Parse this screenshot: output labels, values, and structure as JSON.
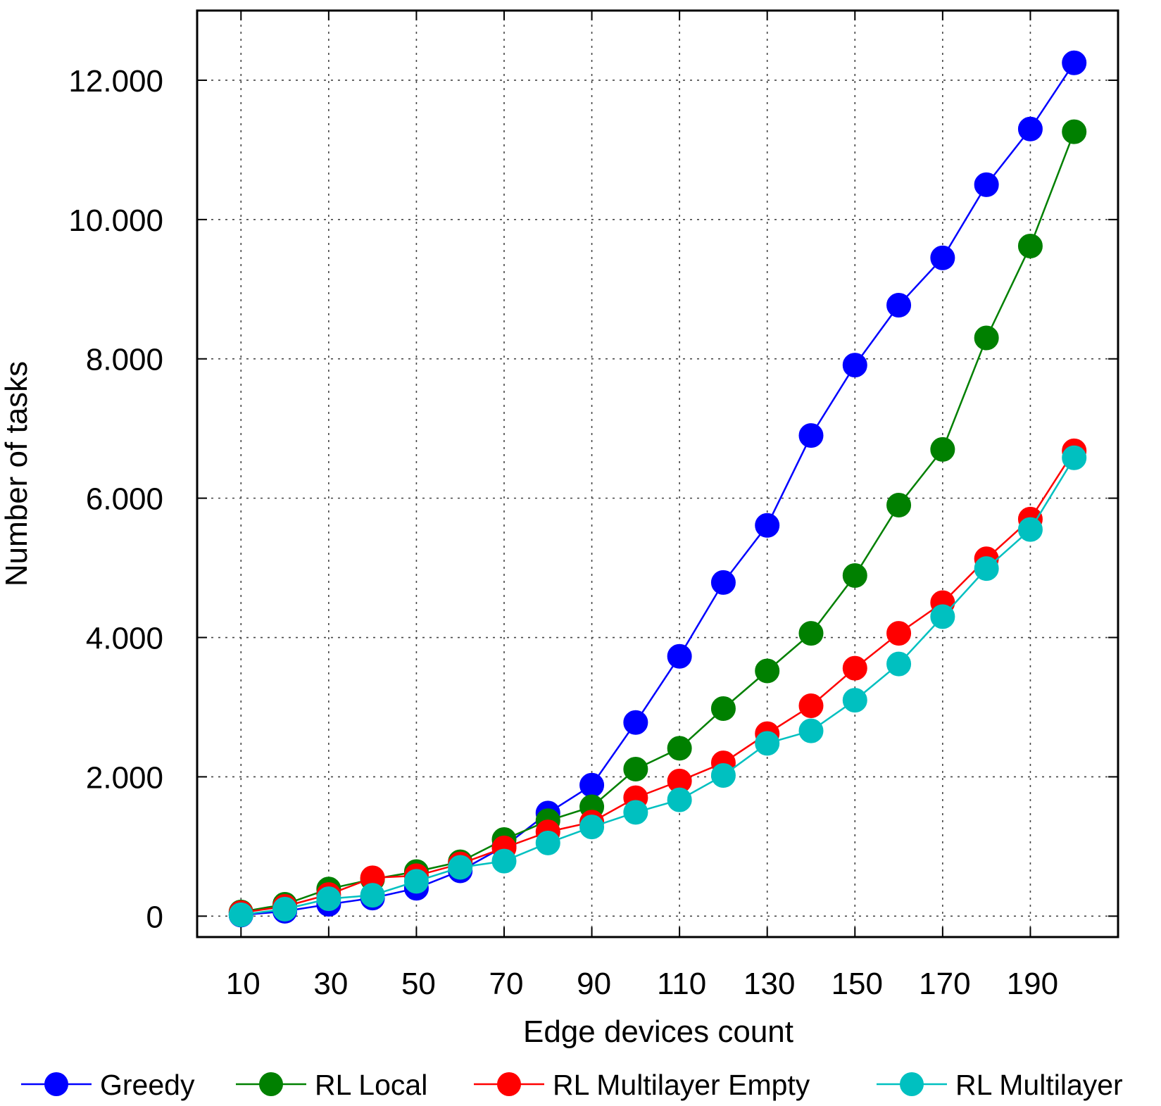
{
  "chart_data": {
    "type": "line",
    "title": "",
    "xlabel": "Edge devices count",
    "ylabel": "Number of tasks",
    "xlim": [
      0,
      210
    ],
    "ylim": [
      -300,
      13000
    ],
    "x_ticks": [
      10,
      30,
      50,
      70,
      90,
      110,
      130,
      150,
      170,
      190
    ],
    "x_tick_labels": [
      "10",
      "30",
      "50",
      "70",
      "90",
      "110",
      "130",
      "150",
      "170",
      "190"
    ],
    "y_ticks": [
      0,
      2000,
      4000,
      6000,
      8000,
      10000,
      12000
    ],
    "y_tick_labels": [
      "0",
      "2.000",
      "4.000",
      "6.000",
      "8.000",
      "10.000",
      "12.000"
    ],
    "grid": true,
    "legend_position": "bottom",
    "x": [
      10,
      20,
      30,
      40,
      50,
      60,
      70,
      80,
      90,
      100,
      110,
      120,
      130,
      140,
      150,
      160,
      170,
      180,
      190,
      200
    ],
    "series": [
      {
        "name": "Greedy",
        "color": "#0000ff",
        "values": [
          15,
          70,
          170,
          260,
          400,
          650,
          1000,
          1480,
          1880,
          2780,
          3730,
          4790,
          5610,
          6900,
          7910,
          8770,
          9450,
          10500,
          11300,
          12250
        ]
      },
      {
        "name": "RL Local",
        "color": "#008000",
        "values": [
          60,
          170,
          390,
          530,
          640,
          780,
          1100,
          1370,
          1570,
          2110,
          2410,
          2980,
          3520,
          4060,
          4890,
          5900,
          6700,
          8300,
          9620,
          11260
        ]
      },
      {
        "name": "RL Multilayer Empty",
        "color": "#ff0000",
        "values": [
          50,
          140,
          310,
          550,
          580,
          750,
          980,
          1210,
          1350,
          1700,
          1940,
          2200,
          2620,
          3020,
          3560,
          4060,
          4500,
          5130,
          5700,
          6680
        ]
      },
      {
        "name": "RL Multilayer",
        "color": "#00c0c0",
        "values": [
          20,
          100,
          250,
          300,
          500,
          700,
          790,
          1050,
          1280,
          1490,
          1670,
          2020,
          2480,
          2660,
          3100,
          3620,
          4300,
          4990,
          5550,
          6580
        ]
      }
    ]
  }
}
